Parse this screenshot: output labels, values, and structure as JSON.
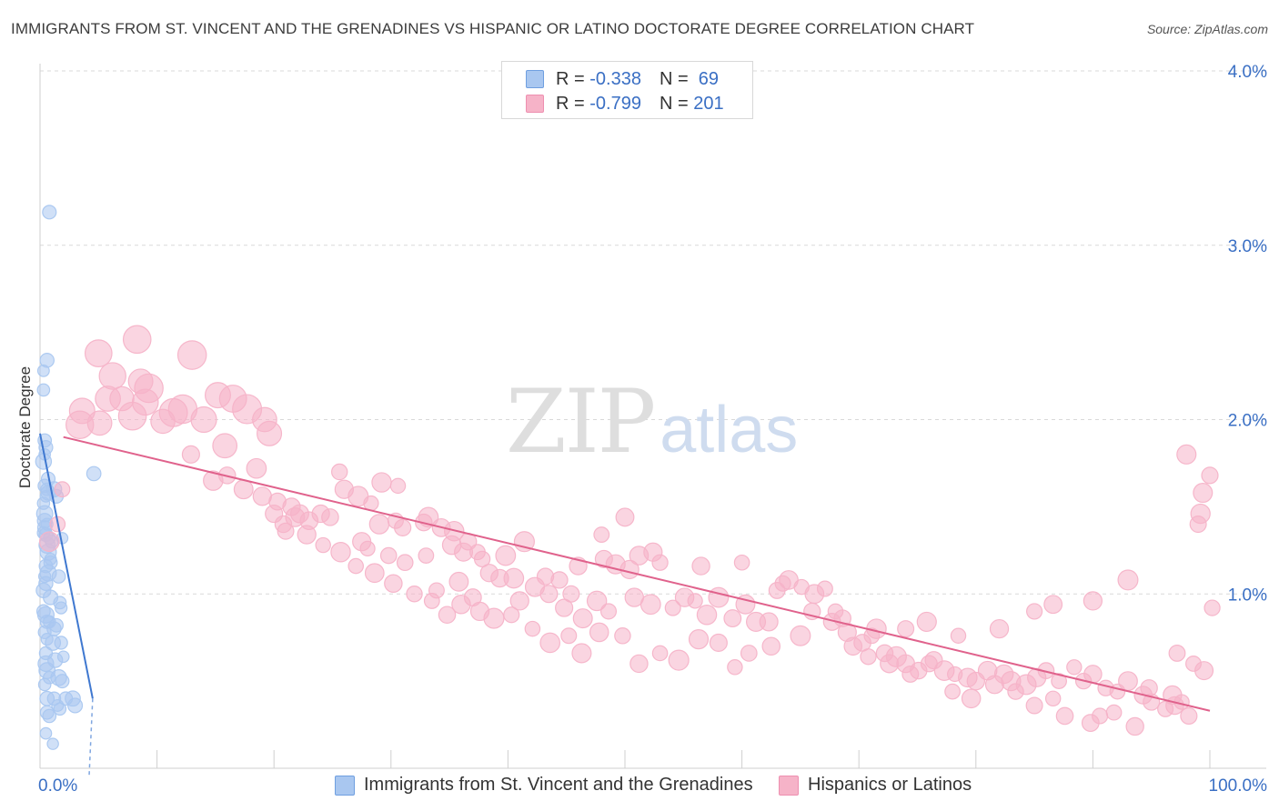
{
  "title": "IMMIGRANTS FROM ST. VINCENT AND THE GRENADINES VS HISPANIC OR LATINO DOCTORATE DEGREE CORRELATION CHART",
  "source": "Source: ZipAtlas.com",
  "watermark": {
    "zip": "ZIP",
    "atlas": "atlas"
  },
  "legend": {
    "rows": [
      {
        "r_label": "R = ",
        "r_value": "-0.338",
        "n_label": "N = ",
        "n_value": " 69",
        "color": "#a9c7f0"
      },
      {
        "r_label": "R = ",
        "r_value": "-0.799",
        "n_label": "N = ",
        "n_value": "201",
        "color": "#f6b3c8"
      }
    ]
  },
  "bottom_legend": [
    {
      "label": "Immigrants from St. Vincent and the Grenadines",
      "color": "#a9c7f0"
    },
    {
      "label": "Hispanics or Latinos",
      "color": "#f6b3c8"
    }
  ],
  "chart_data": {
    "type": "scatter",
    "title": "IMMIGRANTS FROM ST. VINCENT AND THE GRENADINES VS HISPANIC OR LATINO DOCTORATE DEGREE CORRELATION CHART",
    "xlabel": "",
    "ylabel": "Doctorate Degree",
    "xlim": [
      0,
      100
    ],
    "ylim": [
      0,
      4.0
    ],
    "x_tick_labels": [
      "0.0%",
      "100.0%"
    ],
    "y_ticks": [
      1.0,
      2.0,
      3.0,
      4.0
    ],
    "y_tick_labels": [
      "1.0%",
      "2.0%",
      "3.0%",
      "4.0%"
    ],
    "grid": "horizontal dashed",
    "legend_placement": "top-center",
    "series": [
      {
        "name": "Immigrants from St. Vincent and the Grenadines",
        "color": "#5b8fd6",
        "fill": "#a9c7f0",
        "trend": {
          "x": [
            0.0,
            4.5
          ],
          "y": [
            1.92,
            0.4
          ],
          "dash_to": [
            4.2,
            0.0
          ]
        },
        "points": [
          [
            0.8,
            3.19
          ],
          [
            0.6,
            2.34
          ],
          [
            0.3,
            2.28
          ],
          [
            0.3,
            2.17
          ],
          [
            0.4,
            1.88
          ],
          [
            0.5,
            1.84
          ],
          [
            0.4,
            1.8
          ],
          [
            0.3,
            1.76
          ],
          [
            4.6,
            1.69
          ],
          [
            0.4,
            1.62
          ],
          [
            0.6,
            1.6
          ],
          [
            1.2,
            1.6
          ],
          [
            0.7,
            1.58
          ],
          [
            0.5,
            1.56
          ],
          [
            1.4,
            1.56
          ],
          [
            0.3,
            1.52
          ],
          [
            0.4,
            1.42
          ],
          [
            0.6,
            1.4
          ],
          [
            0.4,
            1.38
          ],
          [
            0.5,
            1.34
          ],
          [
            0.8,
            1.32
          ],
          [
            1.9,
            1.32
          ],
          [
            0.6,
            1.28
          ],
          [
            0.7,
            1.24
          ],
          [
            0.9,
            1.2
          ],
          [
            0.5,
            1.16
          ],
          [
            0.7,
            1.12
          ],
          [
            0.4,
            1.1
          ],
          [
            1.6,
            1.1
          ],
          [
            0.5,
            1.06
          ],
          [
            0.3,
            1.02
          ],
          [
            1.7,
            0.95
          ],
          [
            1.8,
            0.92
          ],
          [
            0.5,
            0.88
          ],
          [
            0.6,
            0.84
          ],
          [
            0.8,
            0.84
          ],
          [
            1.2,
            0.8
          ],
          [
            0.4,
            0.78
          ],
          [
            0.6,
            0.74
          ],
          [
            1.1,
            0.72
          ],
          [
            1.8,
            0.72
          ],
          [
            0.5,
            0.66
          ],
          [
            2.0,
            0.64
          ],
          [
            0.6,
            0.56
          ],
          [
            0.8,
            0.52
          ],
          [
            1.6,
            0.52
          ],
          [
            1.9,
            0.5
          ],
          [
            0.4,
            0.48
          ],
          [
            0.6,
            0.4
          ],
          [
            1.2,
            0.4
          ],
          [
            2.8,
            0.4
          ],
          [
            3.0,
            0.36
          ],
          [
            1.5,
            0.36
          ],
          [
            1.7,
            0.34
          ],
          [
            0.6,
            0.32
          ],
          [
            0.5,
            0.2
          ],
          [
            1.1,
            0.14
          ],
          [
            0.8,
            0.3
          ],
          [
            1.3,
            0.62
          ],
          [
            0.9,
            0.98
          ],
          [
            0.4,
            1.46
          ],
          [
            1.0,
            1.3
          ],
          [
            0.3,
            0.9
          ],
          [
            0.7,
            1.66
          ],
          [
            2.2,
            0.4
          ],
          [
            0.5,
            0.6
          ],
          [
            1.4,
            0.82
          ],
          [
            0.9,
            1.18
          ],
          [
            0.3,
            1.35
          ]
        ]
      },
      {
        "name": "Hispanics or Latinos",
        "color": "#e0628c",
        "fill": "#f6b3c8",
        "trend": {
          "x": [
            2.0,
            100.0
          ],
          "y": [
            1.9,
            0.33
          ]
        },
        "points": [
          [
            8.3,
            2.46
          ],
          [
            5.0,
            2.38
          ],
          [
            13.0,
            2.37
          ],
          [
            6.2,
            2.25
          ],
          [
            8.6,
            2.22
          ],
          [
            9.3,
            2.18
          ],
          [
            5.8,
            2.12
          ],
          [
            7.0,
            2.12
          ],
          [
            9.0,
            2.1
          ],
          [
            3.6,
            2.05
          ],
          [
            11.4,
            2.04
          ],
          [
            12.2,
            2.06
          ],
          [
            5.1,
            1.98
          ],
          [
            7.9,
            2.02
          ],
          [
            3.4,
            1.97
          ],
          [
            10.5,
            1.99
          ],
          [
            14.0,
            2.0
          ],
          [
            15.2,
            2.14
          ],
          [
            16.5,
            2.12
          ],
          [
            17.7,
            2.06
          ],
          [
            19.2,
            2.0
          ],
          [
            19.6,
            1.92
          ],
          [
            15.8,
            1.85
          ],
          [
            12.9,
            1.8
          ],
          [
            1.9,
            1.6
          ],
          [
            1.5,
            1.4
          ],
          [
            0.8,
            1.3
          ],
          [
            14.8,
            1.65
          ],
          [
            16.0,
            1.68
          ],
          [
            17.4,
            1.6
          ],
          [
            18.5,
            1.72
          ],
          [
            20.3,
            1.53
          ],
          [
            21.5,
            1.5
          ],
          [
            22.2,
            1.46
          ],
          [
            23.0,
            1.42
          ],
          [
            24.0,
            1.46
          ],
          [
            24.8,
            1.44
          ],
          [
            21.0,
            1.36
          ],
          [
            25.6,
            1.7
          ],
          [
            26.0,
            1.6
          ],
          [
            27.2,
            1.56
          ],
          [
            28.3,
            1.52
          ],
          [
            29.2,
            1.64
          ],
          [
            30.6,
            1.62
          ],
          [
            31.0,
            1.38
          ],
          [
            32.8,
            1.41
          ],
          [
            33.2,
            1.44
          ],
          [
            34.3,
            1.38
          ],
          [
            27.5,
            1.3
          ],
          [
            28.0,
            1.26
          ],
          [
            29.8,
            1.22
          ],
          [
            33.0,
            1.22
          ],
          [
            35.2,
            1.28
          ],
          [
            36.2,
            1.24
          ],
          [
            37.4,
            1.24
          ],
          [
            38.4,
            1.12
          ],
          [
            31.2,
            1.18
          ],
          [
            33.9,
            1.02
          ],
          [
            35.8,
            1.07
          ],
          [
            37.0,
            0.98
          ],
          [
            39.3,
            1.09
          ],
          [
            40.5,
            1.09
          ],
          [
            41.0,
            0.96
          ],
          [
            42.3,
            1.04
          ],
          [
            43.2,
            1.1
          ],
          [
            44.4,
            1.08
          ],
          [
            45.4,
            1.0
          ],
          [
            46.0,
            1.16
          ],
          [
            47.6,
            0.96
          ],
          [
            48.2,
            1.2
          ],
          [
            49.2,
            1.17
          ],
          [
            50.4,
            1.14
          ],
          [
            51.2,
            1.22
          ],
          [
            52.4,
            1.24
          ],
          [
            53.0,
            1.18
          ],
          [
            43.5,
            1.0
          ],
          [
            44.8,
            0.92
          ],
          [
            46.4,
            0.86
          ],
          [
            48.6,
            0.9
          ],
          [
            50.8,
            0.98
          ],
          [
            52.2,
            0.94
          ],
          [
            54.1,
            0.92
          ],
          [
            55.1,
            0.98
          ],
          [
            56.0,
            0.96
          ],
          [
            57.0,
            0.88
          ],
          [
            58.0,
            0.98
          ],
          [
            59.2,
            0.86
          ],
          [
            60.3,
            0.94
          ],
          [
            61.2,
            0.84
          ],
          [
            62.3,
            0.84
          ],
          [
            63.0,
            1.02
          ],
          [
            64.0,
            1.08
          ],
          [
            65.1,
            1.04
          ],
          [
            66.2,
            1.0
          ],
          [
            67.1,
            1.03
          ],
          [
            68.0,
            0.9
          ],
          [
            69.0,
            0.78
          ],
          [
            70.3,
            0.72
          ],
          [
            71.1,
            0.76
          ],
          [
            72.2,
            0.66
          ],
          [
            73.2,
            0.64
          ],
          [
            74.0,
            0.6
          ],
          [
            75.1,
            0.56
          ],
          [
            76.0,
            0.6
          ],
          [
            77.3,
            0.56
          ],
          [
            78.2,
            0.54
          ],
          [
            79.3,
            0.52
          ],
          [
            80.0,
            0.5
          ],
          [
            81.0,
            0.56
          ],
          [
            82.4,
            0.54
          ],
          [
            83.0,
            0.5
          ],
          [
            84.3,
            0.48
          ],
          [
            85.2,
            0.52
          ],
          [
            86.0,
            0.56
          ],
          [
            87.1,
            0.5
          ],
          [
            88.4,
            0.58
          ],
          [
            89.2,
            0.5
          ],
          [
            90.0,
            0.54
          ],
          [
            91.1,
            0.46
          ],
          [
            92.1,
            0.44
          ],
          [
            93.0,
            0.5
          ],
          [
            94.3,
            0.42
          ],
          [
            95.0,
            0.38
          ],
          [
            96.2,
            0.34
          ],
          [
            97.0,
            0.36
          ],
          [
            98.2,
            0.3
          ],
          [
            48.0,
            1.34
          ],
          [
            50.0,
            1.44
          ],
          [
            56.5,
            1.16
          ],
          [
            60.0,
            1.18
          ],
          [
            63.5,
            1.06
          ],
          [
            66.0,
            0.9
          ],
          [
            67.7,
            0.84
          ],
          [
            69.5,
            0.7
          ],
          [
            70.8,
            0.64
          ],
          [
            72.6,
            0.6
          ],
          [
            74.4,
            0.54
          ],
          [
            76.4,
            0.62
          ],
          [
            78.0,
            0.44
          ],
          [
            79.6,
            0.4
          ],
          [
            81.6,
            0.48
          ],
          [
            83.4,
            0.44
          ],
          [
            85.0,
            0.36
          ],
          [
            86.6,
            0.4
          ],
          [
            87.6,
            0.3
          ],
          [
            89.8,
            0.26
          ],
          [
            90.6,
            0.3
          ],
          [
            91.8,
            0.32
          ],
          [
            93.6,
            0.24
          ],
          [
            94.8,
            0.46
          ],
          [
            96.8,
            0.42
          ],
          [
            97.6,
            0.38
          ],
          [
            98.6,
            0.6
          ],
          [
            99.5,
            0.56
          ],
          [
            99.0,
            1.4
          ],
          [
            99.4,
            1.58
          ],
          [
            100.0,
            1.68
          ],
          [
            98.0,
            1.8
          ],
          [
            99.2,
            1.46
          ],
          [
            100.2,
            0.92
          ],
          [
            93.0,
            1.08
          ],
          [
            90.0,
            0.96
          ],
          [
            86.6,
            0.94
          ],
          [
            85.0,
            0.9
          ],
          [
            82.0,
            0.8
          ],
          [
            78.5,
            0.76
          ],
          [
            75.8,
            0.84
          ],
          [
            74.0,
            0.8
          ],
          [
            71.5,
            0.8
          ],
          [
            68.6,
            0.86
          ],
          [
            65.0,
            0.76
          ],
          [
            62.5,
            0.7
          ],
          [
            60.6,
            0.66
          ],
          [
            59.4,
            0.58
          ],
          [
            58.0,
            0.72
          ],
          [
            56.3,
            0.74
          ],
          [
            54.6,
            0.62
          ],
          [
            53.0,
            0.66
          ],
          [
            51.2,
            0.6
          ],
          [
            49.8,
            0.76
          ],
          [
            47.8,
            0.78
          ],
          [
            46.3,
            0.66
          ],
          [
            45.2,
            0.76
          ],
          [
            43.6,
            0.72
          ],
          [
            42.1,
            0.8
          ],
          [
            40.3,
            0.88
          ],
          [
            38.8,
            0.86
          ],
          [
            37.6,
            0.9
          ],
          [
            36.0,
            0.94
          ],
          [
            34.8,
            0.88
          ],
          [
            33.5,
            0.96
          ],
          [
            32.0,
            1.0
          ],
          [
            30.2,
            1.06
          ],
          [
            28.6,
            1.12
          ],
          [
            27.0,
            1.16
          ],
          [
            25.7,
            1.24
          ],
          [
            24.2,
            1.28
          ],
          [
            22.8,
            1.34
          ],
          [
            21.8,
            1.44
          ],
          [
            20.8,
            1.4
          ],
          [
            20.0,
            1.46
          ],
          [
            19.0,
            1.56
          ],
          [
            37.8,
            1.2
          ],
          [
            39.8,
            1.22
          ],
          [
            41.4,
            1.3
          ],
          [
            35.4,
            1.36
          ],
          [
            36.6,
            1.3
          ],
          [
            30.4,
            1.42
          ],
          [
            29.0,
            1.4
          ],
          [
            97.2,
            0.66
          ]
        ]
      }
    ]
  }
}
